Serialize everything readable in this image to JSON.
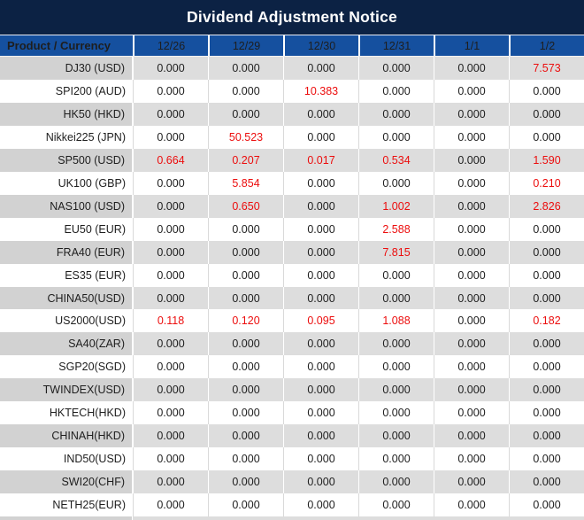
{
  "title": "Dividend Adjustment Notice",
  "table": {
    "product_header": "Product / Currency",
    "date_headers": [
      "12/26",
      "12/29",
      "12/30",
      "12/31",
      "1/1",
      "1/2"
    ],
    "rows": [
      {
        "product": "DJ30 (USD)",
        "values": [
          "0.000",
          "0.000",
          "0.000",
          "0.000",
          "0.000",
          "7.573"
        ],
        "red": [
          5
        ]
      },
      {
        "product": "SPI200 (AUD)",
        "values": [
          "0.000",
          "0.000",
          "10.383",
          "0.000",
          "0.000",
          "0.000"
        ],
        "red": [
          2
        ]
      },
      {
        "product": "HK50 (HKD)",
        "values": [
          "0.000",
          "0.000",
          "0.000",
          "0.000",
          "0.000",
          "0.000"
        ],
        "red": []
      },
      {
        "product": "Nikkei225 (JPN)",
        "values": [
          "0.000",
          "50.523",
          "0.000",
          "0.000",
          "0.000",
          "0.000"
        ],
        "red": [
          1
        ]
      },
      {
        "product": "SP500 (USD)",
        "values": [
          "0.664",
          "0.207",
          "0.017",
          "0.534",
          "0.000",
          "1.590"
        ],
        "red": [
          0,
          1,
          2,
          3,
          5
        ]
      },
      {
        "product": "UK100 (GBP)",
        "values": [
          "0.000",
          "5.854",
          "0.000",
          "0.000",
          "0.000",
          "0.210"
        ],
        "red": [
          1,
          5
        ]
      },
      {
        "product": "NAS100 (USD)",
        "values": [
          "0.000",
          "0.650",
          "0.000",
          "1.002",
          "0.000",
          "2.826"
        ],
        "red": [
          1,
          3,
          5
        ]
      },
      {
        "product": "EU50 (EUR)",
        "values": [
          "0.000",
          "0.000",
          "0.000",
          "2.588",
          "0.000",
          "0.000"
        ],
        "red": [
          3
        ]
      },
      {
        "product": "FRA40 (EUR)",
        "values": [
          "0.000",
          "0.000",
          "0.000",
          "7.815",
          "0.000",
          "0.000"
        ],
        "red": [
          3
        ]
      },
      {
        "product": "ES35 (EUR)",
        "values": [
          "0.000",
          "0.000",
          "0.000",
          "0.000",
          "0.000",
          "0.000"
        ],
        "red": []
      },
      {
        "product": "CHINA50(USD)",
        "values": [
          "0.000",
          "0.000",
          "0.000",
          "0.000",
          "0.000",
          "0.000"
        ],
        "red": []
      },
      {
        "product": "US2000(USD)",
        "values": [
          "0.118",
          "0.120",
          "0.095",
          "1.088",
          "0.000",
          "0.182"
        ],
        "red": [
          0,
          1,
          2,
          3,
          5
        ]
      },
      {
        "product": "SA40(ZAR)",
        "values": [
          "0.000",
          "0.000",
          "0.000",
          "0.000",
          "0.000",
          "0.000"
        ],
        "red": []
      },
      {
        "product": "SGP20(SGD)",
        "values": [
          "0.000",
          "0.000",
          "0.000",
          "0.000",
          "0.000",
          "0.000"
        ],
        "red": []
      },
      {
        "product": "TWINDEX(USD)",
        "values": [
          "0.000",
          "0.000",
          "0.000",
          "0.000",
          "0.000",
          "0.000"
        ],
        "red": []
      },
      {
        "product": "HKTECH(HKD)",
        "values": [
          "0.000",
          "0.000",
          "0.000",
          "0.000",
          "0.000",
          "0.000"
        ],
        "red": []
      },
      {
        "product": "CHINAH(HKD)",
        "values": [
          "0.000",
          "0.000",
          "0.000",
          "0.000",
          "0.000",
          "0.000"
        ],
        "red": []
      },
      {
        "product": "IND50(USD)",
        "values": [
          "0.000",
          "0.000",
          "0.000",
          "0.000",
          "0.000",
          "0.000"
        ],
        "red": []
      },
      {
        "product": "SWI20(CHF)",
        "values": [
          "0.000",
          "0.000",
          "0.000",
          "0.000",
          "0.000",
          "0.000"
        ],
        "red": []
      },
      {
        "product": "NETH25(EUR)",
        "values": [
          "0.000",
          "0.000",
          "0.000",
          "0.000",
          "0.000",
          "0.000"
        ],
        "red": []
      }
    ]
  },
  "colors": {
    "title_bar_bg": "#0c2244",
    "header_bg": "#15509f",
    "header_text": "#ffffff",
    "row_alt_bg": "#dddddd",
    "product_alt_bg": "#d2d2d2",
    "row_bg": "#ffffff",
    "text_dark": "#1e1e1e",
    "highlight_red": "#ec0d0d"
  }
}
